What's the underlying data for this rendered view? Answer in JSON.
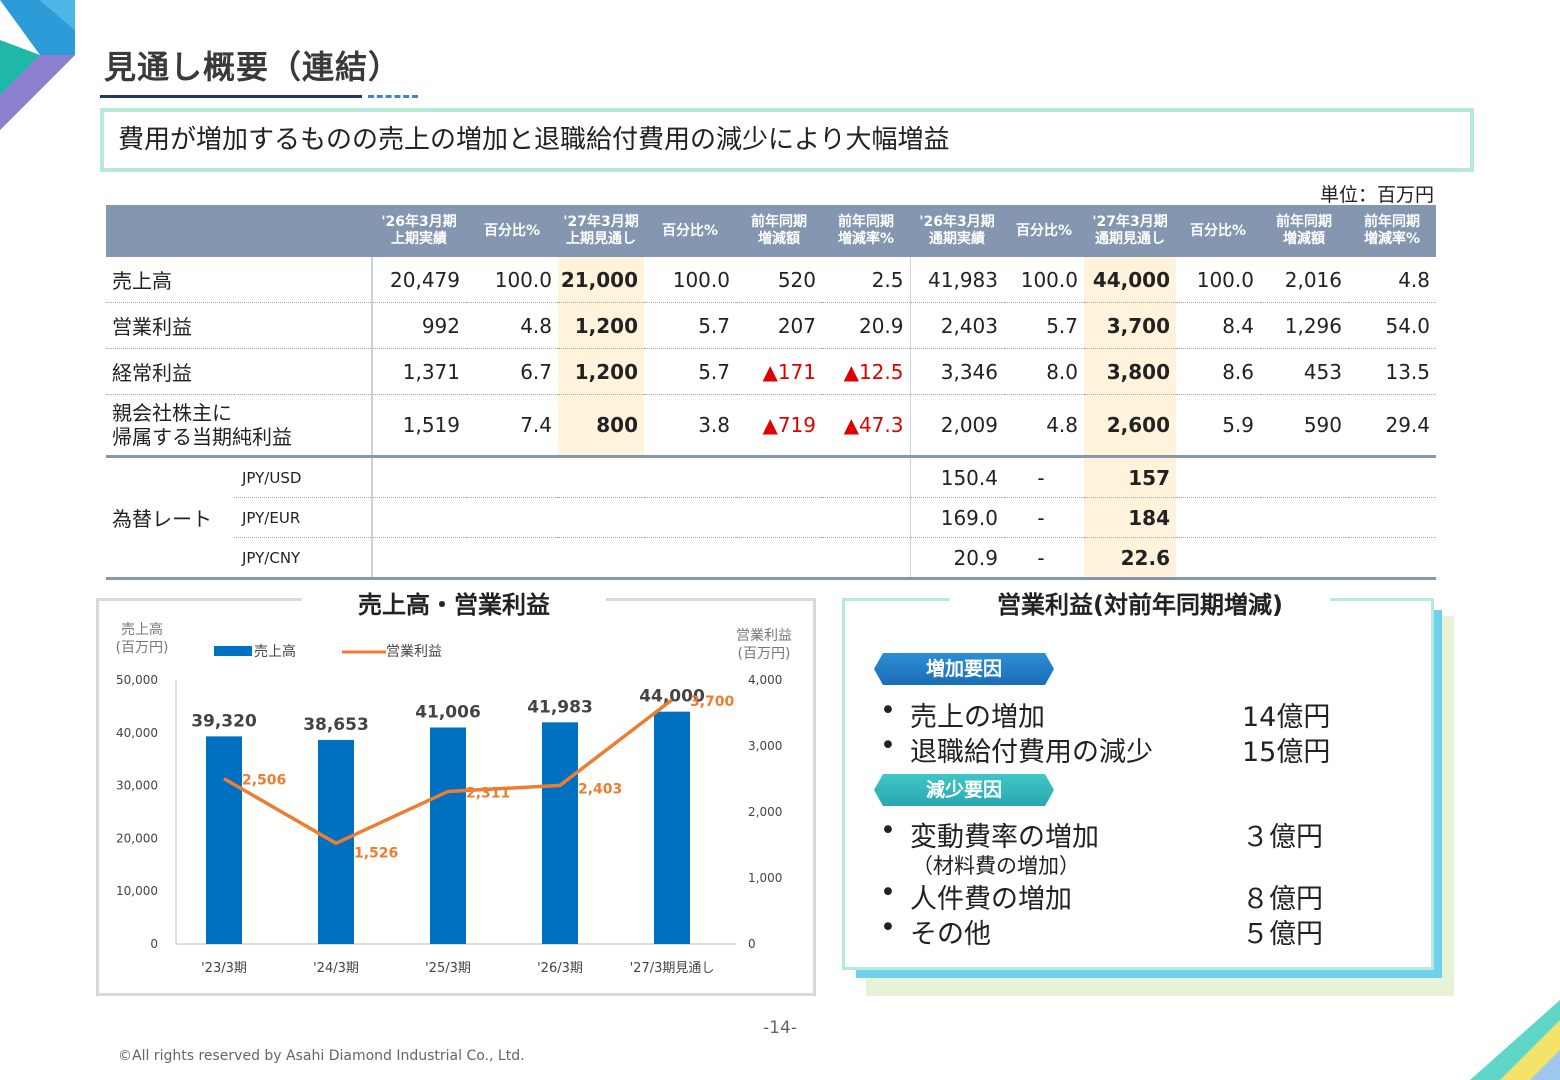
{
  "header": {
    "title": "見通し概要（連結）",
    "summary": "費用が増加するものの売上の増加と退職給付費用の減少により大幅増益",
    "unit": "単位：百万円"
  },
  "table": {
    "headers": [
      {
        "l1": "'26年3月期",
        "l2": "上期実績"
      },
      {
        "l1": "百分比%",
        "l2": ""
      },
      {
        "l1": "'27年3月期",
        "l2": "上期見通し"
      },
      {
        "l1": "百分比%",
        "l2": ""
      },
      {
        "l1": "前年同期",
        "l2": "増減額"
      },
      {
        "l1": "前年同期",
        "l2": "増減率%"
      },
      {
        "l1": "'26年3月期",
        "l2": "通期実績"
      },
      {
        "l1": "百分比%",
        "l2": ""
      },
      {
        "l1": "'27年3月期",
        "l2": "通期見通し"
      },
      {
        "l1": "百分比%",
        "l2": ""
      },
      {
        "l1": "前年同期",
        "l2": "増減額"
      },
      {
        "l1": "前年同期",
        "l2": "増減率%"
      }
    ],
    "rows": [
      {
        "label1": "売上高",
        "label2": "",
        "cells": [
          "20,479",
          "100.0",
          "21,000",
          "100.0",
          "520",
          "2.5",
          "41,983",
          "100.0",
          "44,000",
          "100.0",
          "2,016",
          "4.8"
        ]
      },
      {
        "label1": "営業利益",
        "label2": "",
        "cells": [
          "992",
          "4.8",
          "1,200",
          "5.7",
          "207",
          "20.9",
          "2,403",
          "5.7",
          "3,700",
          "8.4",
          "1,296",
          "54.0"
        ]
      },
      {
        "label1": "経常利益",
        "label2": "",
        "cells": [
          "1,371",
          "6.7",
          "1,200",
          "5.7",
          "▲171",
          "▲12.5",
          "3,346",
          "8.0",
          "3,800",
          "8.6",
          "453",
          "13.5"
        ]
      },
      {
        "label1": "親会社株主に",
        "label2": "帰属する当期純利益",
        "cells": [
          "1,519",
          "7.4",
          "800",
          "3.8",
          "▲719",
          "▲47.3",
          "2,009",
          "4.8",
          "2,600",
          "5.9",
          "590",
          "29.4"
        ]
      }
    ],
    "fx_label": "為替レート",
    "fx": [
      {
        "pair": "JPY/USD",
        "actual": "150.4",
        "pct": "-",
        "forecast": "157"
      },
      {
        "pair": "JPY/EUR",
        "actual": "169.0",
        "pct": "-",
        "forecast": "184"
      },
      {
        "pair": "JPY/CNY",
        "actual": "20.9",
        "pct": "-",
        "forecast": "22.6"
      }
    ]
  },
  "chart_data": {
    "type": "bar",
    "title": "売上高・営業利益",
    "categories": [
      "'23/3期",
      "'24/3期",
      "'25/3期",
      "'26/3期",
      "'27/3期見通し"
    ],
    "series": [
      {
        "name": "売上高",
        "type": "bar",
        "axis": "left",
        "values": [
          39320,
          38653,
          41006,
          41983,
          44000
        ],
        "labels": [
          "39,320",
          "38,653",
          "41,006",
          "41,983",
          "44,000"
        ],
        "color": "#0070c0"
      },
      {
        "name": "営業利益",
        "type": "line",
        "axis": "right",
        "values": [
          2506,
          1526,
          2311,
          2403,
          3700
        ],
        "labels": [
          "2,506",
          "1,526",
          "2,311",
          "2,403",
          "3,700"
        ],
        "color": "#ed7d31"
      }
    ],
    "ylabel_left": [
      "売上高",
      "(百万円)"
    ],
    "ylabel_right": [
      "営業利益",
      "(百万円)"
    ],
    "ylim_left": [
      0,
      50000
    ],
    "ylim_right": [
      0,
      4000
    ],
    "yticks_left": [
      "50,000",
      "40,000",
      "30,000",
      "20,000",
      "10,000",
      "0"
    ],
    "yticks_right": [
      "4,000",
      "3,000",
      "2,000",
      "1,000",
      "0"
    ],
    "legend": "top"
  },
  "factors": {
    "title": "営業利益(対前年同期増減)",
    "increase_tag": "増加要因",
    "decrease_tag": "減少要因",
    "increase": [
      {
        "label": "売上の増加",
        "value": "14億円"
      },
      {
        "label": "退職給付費用の減少",
        "value": "15億円"
      }
    ],
    "decrease": [
      {
        "label": "変動費率の増加",
        "value": "３億円",
        "note": "（材料費の増加）"
      },
      {
        "label": "人件費の増加",
        "value": "８億円"
      },
      {
        "label": "その他",
        "value": "５億円"
      }
    ],
    "bullet": "•"
  },
  "footer": {
    "page": "-14-",
    "copyright": "©All rights reserved by Asahi Diamond Industrial Co., Ltd."
  },
  "colors": {
    "header_bg": "#8496b0",
    "highlight": "#fff3dc",
    "negative": "#e00000",
    "bar": "#0070c0",
    "line": "#ed7d31"
  }
}
